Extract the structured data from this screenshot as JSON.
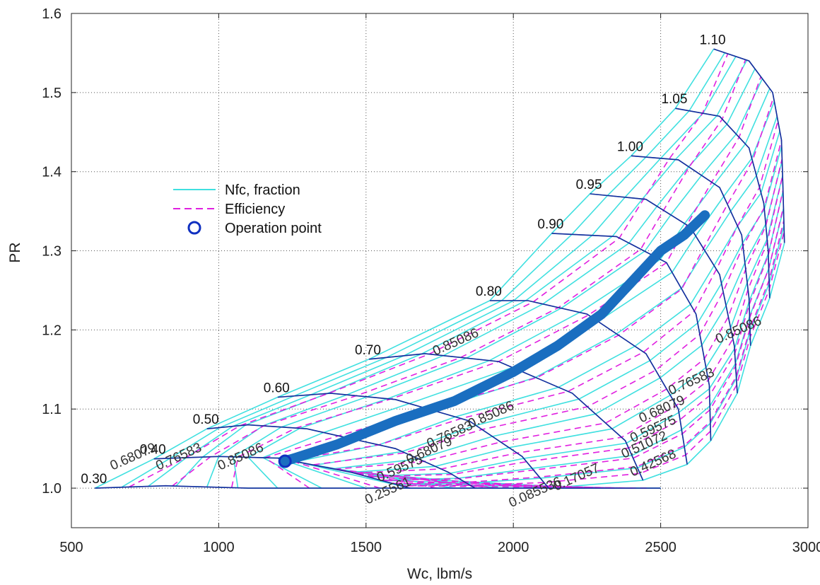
{
  "chart_data": {
    "type": "line",
    "title": "",
    "xlabel": "Wc, lbm/s",
    "ylabel": "PR",
    "xlim": [
      500,
      3000
    ],
    "ylim": [
      0.95,
      1.6
    ],
    "x_ticks": [
      "500",
      "1000",
      "1500",
      "2000",
      "2500",
      "3000"
    ],
    "y_ticks": [
      "1.0",
      "1.1",
      "1.2",
      "1.3",
      "1.4",
      "1.5",
      "1.6"
    ],
    "grid": true,
    "legend_position": "upper-left",
    "legend": [
      {
        "label": "Nfc, fraction",
        "style": "solid",
        "color": "#40e0e0"
      },
      {
        "label": "Efficiency",
        "style": "dashed",
        "color": "#e020e0"
      },
      {
        "label": "Operation point",
        "style": "circle",
        "color": "#1040c0"
      }
    ],
    "colors": {
      "speed_line": "#40e0e0",
      "efficiency_line": "#e020e0",
      "beta_line": "#1a2a9c",
      "operation_point": "#1a6ec0",
      "operation_point_edge": "#1030c0"
    },
    "speed_lines": [
      {
        "name": "0.30",
        "points": [
          [
            580,
            1.0
          ],
          [
            820,
            1.003
          ],
          [
            1100,
            1.0
          ],
          [
            1500,
            1.0
          ],
          [
            1900,
            1.0
          ],
          [
            2300,
            1.0
          ],
          [
            2500,
            1.0
          ]
        ]
      },
      {
        "name": "0.40",
        "points": [
          [
            780,
            1.037
          ],
          [
            1000,
            1.04
          ],
          [
            1200,
            1.038
          ],
          [
            1450,
            1.02
          ],
          [
            1650,
            1.0
          ]
        ]
      },
      {
        "name": "0.50",
        "points": [
          [
            960,
            1.075
          ],
          [
            1100,
            1.08
          ],
          [
            1300,
            1.075
          ],
          [
            1600,
            1.05
          ],
          [
            1780,
            1.02
          ],
          [
            1870,
            1.0
          ]
        ]
      },
      {
        "name": "0.60",
        "points": [
          [
            1200,
            1.115
          ],
          [
            1380,
            1.12
          ],
          [
            1600,
            1.112
          ],
          [
            1850,
            1.085
          ],
          [
            2030,
            1.04
          ],
          [
            2120,
            1.0
          ]
        ]
      },
      {
        "name": "0.70",
        "points": [
          [
            1510,
            1.163
          ],
          [
            1700,
            1.17
          ],
          [
            1950,
            1.16
          ],
          [
            2200,
            1.12
          ],
          [
            2380,
            1.06
          ],
          [
            2440,
            1.01
          ]
        ]
      },
      {
        "name": "0.80",
        "points": [
          [
            1920,
            1.237
          ],
          [
            2050,
            1.237
          ],
          [
            2250,
            1.22
          ],
          [
            2450,
            1.17
          ],
          [
            2560,
            1.1
          ],
          [
            2590,
            1.03
          ]
        ]
      },
      {
        "name": "0.90",
        "points": [
          [
            2130,
            1.322
          ],
          [
            2350,
            1.318
          ],
          [
            2520,
            1.285
          ],
          [
            2620,
            1.22
          ],
          [
            2665,
            1.13
          ],
          [
            2670,
            1.06
          ]
        ]
      },
      {
        "name": "0.95",
        "points": [
          [
            2260,
            1.372
          ],
          [
            2450,
            1.365
          ],
          [
            2600,
            1.33
          ],
          [
            2700,
            1.27
          ],
          [
            2750,
            1.18
          ],
          [
            2760,
            1.12
          ]
        ]
      },
      {
        "name": "1.00",
        "points": [
          [
            2400,
            1.42
          ],
          [
            2560,
            1.415
          ],
          [
            2700,
            1.38
          ],
          [
            2775,
            1.32
          ],
          [
            2800,
            1.24
          ],
          [
            2805,
            1.18
          ]
        ]
      },
      {
        "name": "1.05",
        "points": [
          [
            2550,
            1.48
          ],
          [
            2700,
            1.47
          ],
          [
            2800,
            1.43
          ],
          [
            2850,
            1.36
          ],
          [
            2865,
            1.3
          ],
          [
            2870,
            1.24
          ]
        ]
      },
      {
        "name": "1.10",
        "points": [
          [
            2680,
            1.555
          ],
          [
            2800,
            1.54
          ],
          [
            2880,
            1.5
          ],
          [
            2910,
            1.44
          ],
          [
            2915,
            1.38
          ],
          [
            2920,
            1.31
          ]
        ]
      }
    ],
    "efficiency_contours": [
      "0.085536",
      "0.17057",
      "0.25561",
      "0.42568",
      "0.51072",
      "0.59575",
      "0.68079",
      "0.76583",
      "0.85086"
    ],
    "efficiency_annotations": [
      {
        "text": "0.68079",
        "x": 715,
        "y": 1.035
      },
      {
        "text": "0.76583",
        "x": 870,
        "y": 1.035
      },
      {
        "text": "0.85086",
        "x": 1080,
        "y": 1.035
      },
      {
        "text": "0.25561",
        "x": 1580,
        "y": 0.992
      },
      {
        "text": "0.59575",
        "x": 1620,
        "y": 1.02
      },
      {
        "text": "0.68079",
        "x": 1720,
        "y": 1.043
      },
      {
        "text": "0.76583",
        "x": 1790,
        "y": 1.063
      },
      {
        "text": "0.85086",
        "x": 1930,
        "y": 1.088
      },
      {
        "text": "0.085536",
        "x": 2080,
        "y": 0.99
      },
      {
        "text": "0.17057",
        "x": 2220,
        "y": 1.009
      },
      {
        "text": "0.42568",
        "x": 2480,
        "y": 1.027
      },
      {
        "text": "0.51072",
        "x": 2450,
        "y": 1.05
      },
      {
        "text": "0.59575",
        "x": 2480,
        "y": 1.07
      },
      {
        "text": "0.68079",
        "x": 2510,
        "y": 1.095
      },
      {
        "text": "0.76583",
        "x": 2610,
        "y": 1.13
      },
      {
        "text": "0.85086",
        "x": 1810,
        "y": 1.18
      },
      {
        "text": "0.85086",
        "x": 2770,
        "y": 1.195
      }
    ],
    "operation_point": {
      "x": 1225,
      "y": 1.034
    },
    "operating_line": [
      [
        1225,
        1.034
      ],
      [
        1400,
        1.055
      ],
      [
        1600,
        1.085
      ],
      [
        1800,
        1.11
      ],
      [
        2000,
        1.147
      ],
      [
        2150,
        1.18
      ],
      [
        2300,
        1.22
      ],
      [
        2400,
        1.26
      ],
      [
        2500,
        1.3
      ],
      [
        2580,
        1.32
      ],
      [
        2650,
        1.345
      ]
    ]
  }
}
